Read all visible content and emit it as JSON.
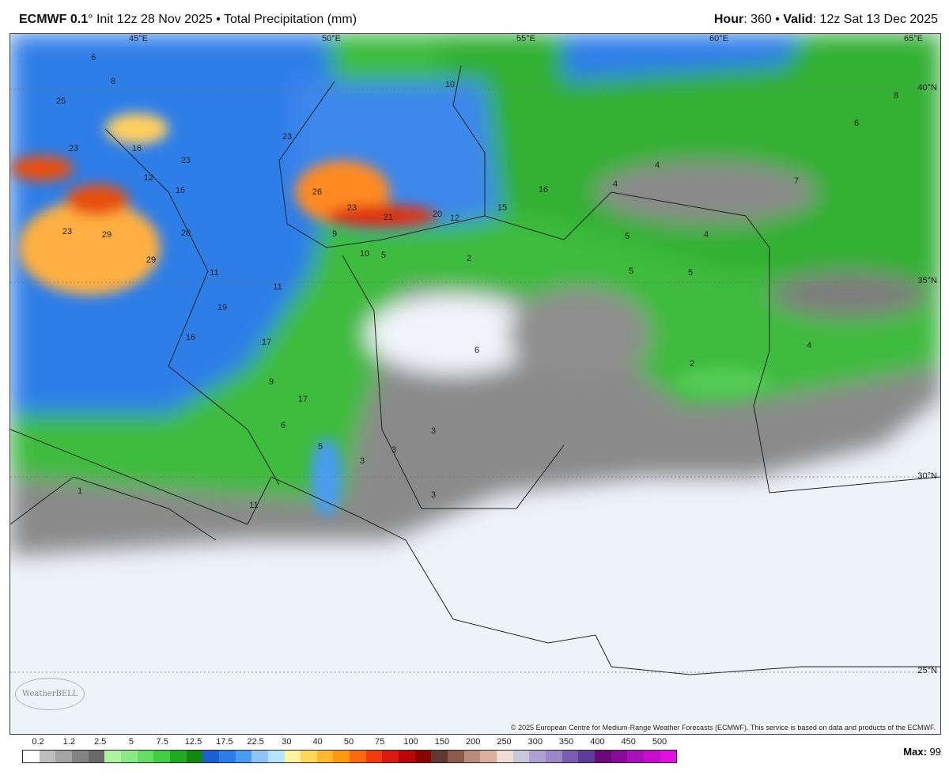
{
  "header": {
    "model": "ECMWF 0.1",
    "degree": "°",
    "init": "Init 12z 28 Nov 2025",
    "separator": "•",
    "product": "Total Precipitation (mm)",
    "hour_label": "Hour",
    "hour": "360",
    "valid_label": "Valid",
    "valid": "12z Sat 13 Dec 2025"
  },
  "map": {
    "lon_labels": [
      "45°E",
      "50°E",
      "55°E",
      "60°E",
      "65°E"
    ],
    "lat_labels": [
      "40°N",
      "35°N",
      "30°N",
      "25°N"
    ],
    "value_labels": [
      "6",
      "8",
      "25",
      "23",
      "16",
      "23",
      "12",
      "16",
      "23",
      "29",
      "29",
      "20",
      "11",
      "11",
      "19",
      "16",
      "17",
      "9",
      "17",
      "6",
      "5",
      "3",
      "1",
      "11",
      "23",
      "26",
      "23",
      "21",
      "20",
      "12",
      "15",
      "16",
      "10",
      "9",
      "10",
      "5",
      "2",
      "5",
      "6",
      "4",
      "4",
      "4",
      "5",
      "5",
      "7",
      "6",
      "8",
      "4",
      "2",
      "3",
      "3",
      "3"
    ],
    "copyright": "© 2025 European Centre for Medium-Range Weather Forecasts (ECMWF). This service is based on data and products of the ECMWF.",
    "logo": "WeatherBELL"
  },
  "legend": {
    "ticks": [
      "0.2",
      "1.2",
      "2.5",
      "5",
      "7.5",
      "12.5",
      "17.5",
      "22.5",
      "30",
      "40",
      "50",
      "75",
      "100",
      "150",
      "200",
      "250",
      "300",
      "350",
      "400",
      "450",
      "500"
    ],
    "colors": [
      "#ffffff",
      "#bdbdbd",
      "#a4a4a4",
      "#848484",
      "#6a6a6a",
      "#aef5a0",
      "#8be887",
      "#66dd66",
      "#44cc44",
      "#22aa22",
      "#118811",
      "#1f5fd6",
      "#2f7ee8",
      "#4a9cf0",
      "#8fc4f7",
      "#b6e5fb",
      "#fff3a0",
      "#ffd85a",
      "#ffb830",
      "#ff9a10",
      "#ff6a10",
      "#f23a10",
      "#d81a10",
      "#b80808",
      "#8a0404",
      "#5e3a32",
      "#8a5a4c",
      "#b88c7c",
      "#d8b0a0",
      "#f0dcd4",
      "#c8c8dc",
      "#b0a0d0",
      "#9a88c4",
      "#7a5cb0",
      "#5e3c9a",
      "#6a0a7a",
      "#880a98",
      "#a810b8",
      "#c80ccc",
      "#e010e0"
    ],
    "max_label": "Max:",
    "max_value": "99"
  }
}
